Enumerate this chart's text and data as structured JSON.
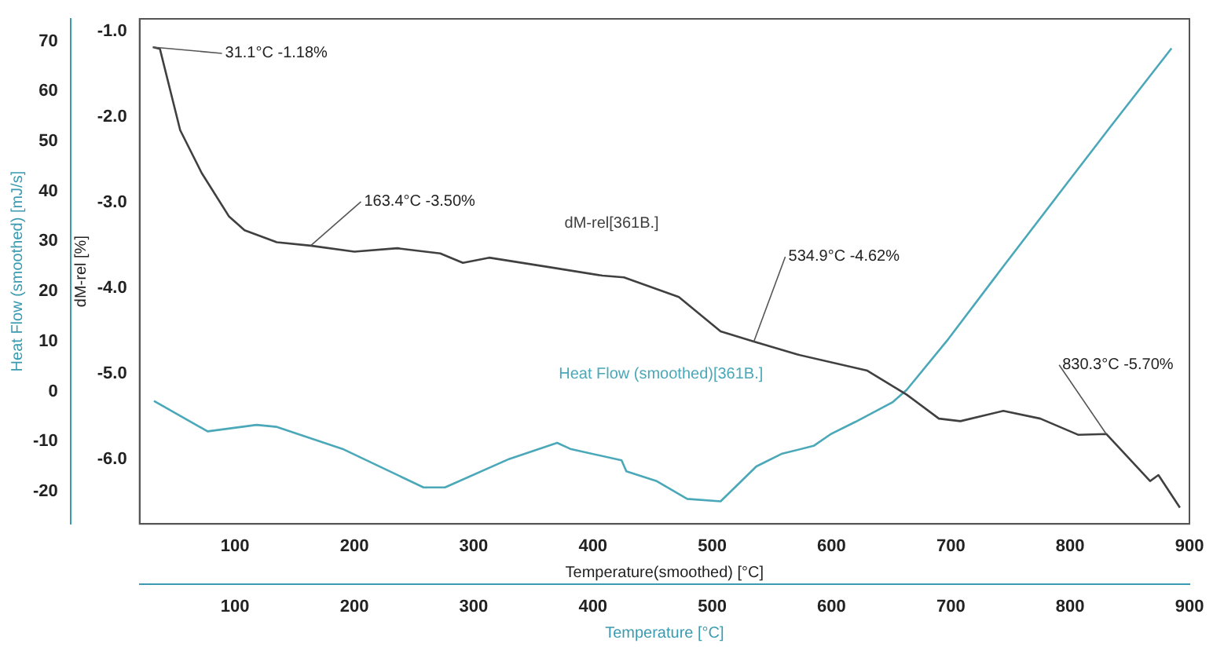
{
  "chart_data": {
    "type": "line",
    "xlabel": "Temperature(smoothed) [°C]",
    "x2label": "Temperature [°C]",
    "ylabel": "dM-rel [%]",
    "y2label": "Heat Flow (smoothed) [mJ/s]",
    "xlim": [
      20,
      900
    ],
    "xticks": [
      100,
      200,
      300,
      400,
      500,
      600,
      700,
      800,
      900
    ],
    "x2lim": [
      20,
      900
    ],
    "x2ticks": [
      100,
      200,
      300,
      400,
      500,
      600,
      700,
      800,
      900
    ],
    "ylim": [
      -6.75,
      -0.85
    ],
    "yticks": [
      {
        "value": -1,
        "label": "-1.0"
      },
      {
        "value": -2,
        "label": "-2.0"
      },
      {
        "value": -3,
        "label": "-3.0"
      },
      {
        "value": -4,
        "label": "-4.0"
      },
      {
        "value": -5,
        "label": "-5.0"
      },
      {
        "value": -6,
        "label": "-6.0"
      }
    ],
    "y2lim": [
      -26.5,
      74.5
    ],
    "y2ticks": [
      -20,
      -10,
      0,
      10,
      20,
      30,
      40,
      50,
      60,
      70
    ],
    "grid": false,
    "legend": false,
    "marker": "none",
    "line_style": "solid",
    "series": [
      {
        "name": "dM-rel[361B.]",
        "color": "#404040",
        "x": [
          31.1,
          37,
          54,
          72,
          95,
          108,
          135,
          163.4,
          200,
          236,
          272,
          291,
          313,
          363,
          408,
          426,
          472,
          507,
          534.9,
          571,
          630,
          663,
          690,
          708,
          744,
          775,
          807,
          830.3,
          867,
          874,
          892
        ],
        "values": [
          -1.18,
          -1.2,
          -2.15,
          -2.65,
          -3.16,
          -3.32,
          -3.46,
          -3.5,
          -3.57,
          -3.53,
          -3.59,
          -3.7,
          -3.64,
          -3.75,
          -3.85,
          -3.87,
          -4.1,
          -4.5,
          -4.62,
          -4.77,
          -4.96,
          -5.24,
          -5.52,
          -5.55,
          -5.43,
          -5.52,
          -5.71,
          -5.7,
          -6.25,
          -6.18,
          -6.56
        ]
      },
      {
        "name": "Heat Flow (smoothed)[361B.]",
        "axis": "y2",
        "color": "#4aa8b8",
        "x": [
          32,
          77,
          118,
          135,
          190,
          258,
          276,
          330,
          370,
          381,
          424,
          428,
          453,
          479,
          507,
          537,
          558,
          585,
          599,
          620,
          651,
          663,
          698,
          744,
          789,
          834,
          885
        ],
        "values": [
          -1.9,
          -8,
          -6.7,
          -7.1,
          -11.5,
          -19.2,
          -19.2,
          -13.5,
          -10.3,
          -11.5,
          -13.8,
          -16,
          -17.9,
          -21.5,
          -22,
          -15,
          -12.5,
          -10.9,
          -8.6,
          -6.1,
          -2.2,
          0.3,
          10.5,
          25,
          39,
          53,
          68.6
        ]
      }
    ],
    "annotations": [
      {
        "text": "31.1°C -1.18%",
        "x": 31.1,
        "y": -1.18
      },
      {
        "text": "163.4°C -3.50%",
        "x": 163.4,
        "y": -3.5
      },
      {
        "text": "534.9°C -4.62%",
        "x": 534.9,
        "y": -4.62
      },
      {
        "text": "830.3°C -5.70%",
        "x": 830.3,
        "y": -5.7
      }
    ]
  }
}
